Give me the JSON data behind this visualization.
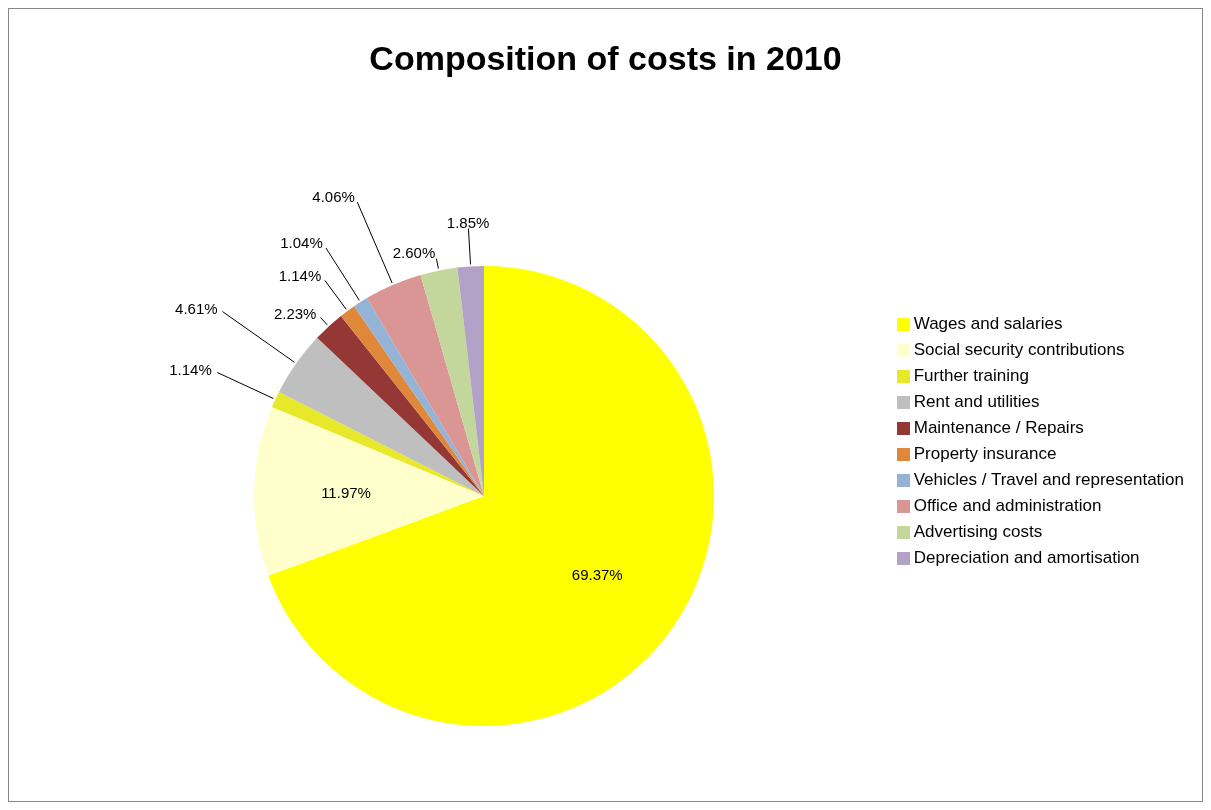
{
  "chart_data": {
    "type": "pie",
    "title": "Composition of costs in 2010",
    "categories": [
      "Wages and salaries",
      "Social security contributions",
      "Further training",
      "Rent and utilities",
      "Maintenance / Repairs",
      "Property insurance",
      "Vehicles / Travel and representation",
      "Office and administration",
      "Advertising costs",
      "Depreciation and amortisation"
    ],
    "values": [
      69.37,
      11.97,
      1.14,
      4.61,
      2.23,
      1.14,
      1.04,
      4.06,
      2.6,
      1.85
    ],
    "value_labels": [
      "69.37%",
      "11.97%",
      "1.14%",
      "4.61%",
      "2.23%",
      "1.14%",
      "1.04%",
      "4.06%",
      "2.60%",
      "1.85%"
    ],
    "colors": [
      "#ffff00",
      "#ffffcc",
      "#e8e82a",
      "#bfbfbf",
      "#953735",
      "#e0883a",
      "#95b3d7",
      "#d99694",
      "#c3d69b",
      "#b3a2c7"
    ],
    "legend": "right"
  }
}
